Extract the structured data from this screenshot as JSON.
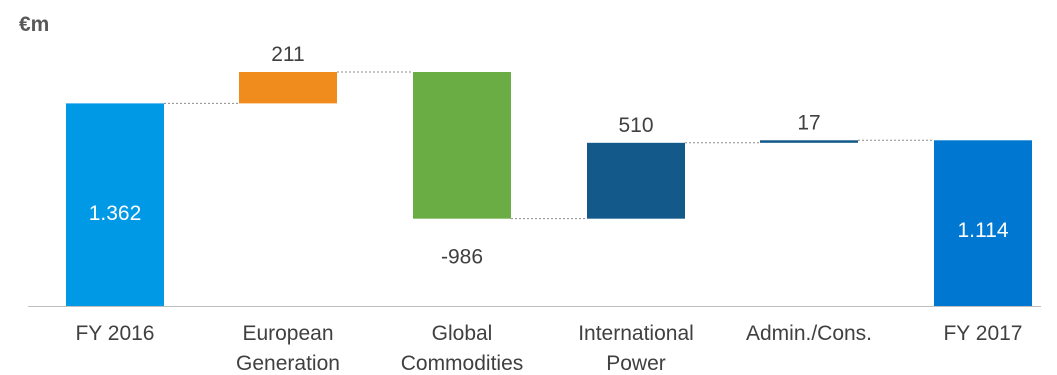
{
  "chart_data": {
    "type": "waterfall",
    "unit_label": "€m",
    "categories": [
      "FY 2016",
      "European Generation",
      "Global Commodities",
      "International Power",
      "Admin./Cons.",
      "FY 2017"
    ],
    "category_lines": [
      [
        "FY 2016"
      ],
      [
        "European",
        "Generation"
      ],
      [
        "Global",
        "Commodities"
      ],
      [
        "International",
        "Power"
      ],
      [
        "Admin./Cons."
      ],
      [
        "FY 2017"
      ]
    ],
    "values": [
      1362,
      211,
      -986,
      510,
      17,
      1114
    ],
    "value_labels": [
      "1.362",
      "211",
      "-986",
      "510",
      "17",
      "1.114"
    ],
    "kinds": [
      "total",
      "delta",
      "delta",
      "delta",
      "delta",
      "total"
    ],
    "colors": [
      "#0099E6",
      "#F08C1E",
      "#6AAD45",
      "#135A8A",
      "#135A8A",
      "#0078D2"
    ],
    "label_color_inside": "#ffffff",
    "label_color_outside": "#404040",
    "ylim": [
      0,
      1600
    ],
    "grid": false,
    "connectors": true
  }
}
